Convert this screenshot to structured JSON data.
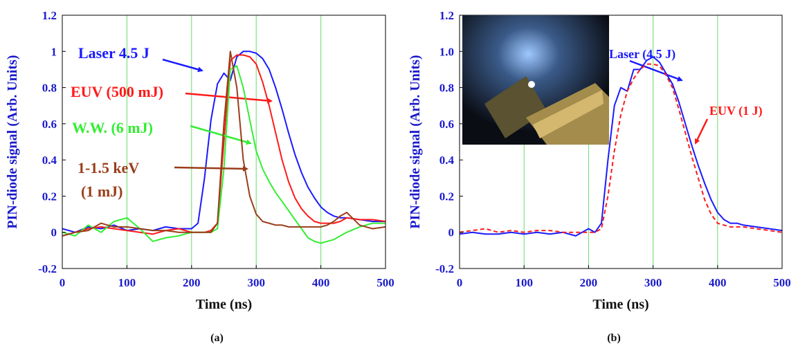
{
  "chart_data": [
    {
      "type": "line",
      "xlabel": "Time (ns)",
      "ylabel": "PIN-diode signal (Arb. Units)",
      "caption": "(a)",
      "xlim": [
        0,
        500
      ],
      "ylim": [
        -0.2,
        1.2
      ],
      "xticks": [
        0,
        100,
        200,
        300,
        400,
        500
      ],
      "yticks": [
        -0.2,
        0,
        0.2,
        0.4,
        0.6,
        0.8,
        1,
        1.2
      ],
      "grid": "x",
      "grid_color": "#66dd66",
      "x": [
        0,
        20,
        40,
        60,
        80,
        100,
        120,
        140,
        160,
        180,
        200,
        210,
        220,
        230,
        240,
        250,
        260,
        270,
        280,
        290,
        300,
        310,
        320,
        330,
        340,
        350,
        360,
        370,
        380,
        390,
        400,
        410,
        420,
        430,
        440,
        460,
        480,
        500
      ],
      "series": [
        {
          "name": "Laser 4.5 J",
          "color": "#1a1aff",
          "values": [
            0.02,
            0.0,
            0.03,
            0.02,
            0.04,
            0.01,
            0.02,
            0.01,
            0.03,
            0.02,
            0.02,
            0.05,
            0.3,
            0.62,
            0.82,
            0.88,
            0.84,
            0.97,
            1.0,
            1.0,
            0.99,
            0.96,
            0.9,
            0.8,
            0.68,
            0.55,
            0.43,
            0.33,
            0.25,
            0.19,
            0.14,
            0.11,
            0.09,
            0.08,
            0.08,
            0.07,
            0.06,
            0.06
          ]
        },
        {
          "name": "EUV (500 mJ)",
          "color": "#ff1a1a",
          "values": [
            -0.02,
            0.0,
            0.02,
            0.03,
            0.02,
            0.01,
            0.0,
            -0.01,
            0.01,
            0.02,
            0.0,
            0.0,
            0.0,
            0.01,
            0.05,
            0.5,
            0.95,
            0.98,
            0.98,
            0.97,
            0.93,
            0.83,
            0.7,
            0.55,
            0.4,
            0.28,
            0.19,
            0.13,
            0.09,
            0.06,
            0.05,
            0.05,
            0.05,
            0.06,
            0.08,
            0.07,
            0.07,
            0.06
          ]
        },
        {
          "name": "W.W. (6 mJ)",
          "color": "#33ee33",
          "values": [
            0.0,
            -0.02,
            0.04,
            0.0,
            0.06,
            0.08,
            0.02,
            -0.05,
            -0.03,
            -0.02,
            0.0,
            0.0,
            0.0,
            0.0,
            0.02,
            0.35,
            0.9,
            0.92,
            0.8,
            0.62,
            0.45,
            0.35,
            0.28,
            0.22,
            0.17,
            0.12,
            0.07,
            0.02,
            -0.03,
            -0.05,
            -0.06,
            -0.05,
            -0.04,
            -0.02,
            0.0,
            0.03,
            0.05,
            0.05
          ]
        },
        {
          "name": [
            "1-1.5 keV",
            "(1 mJ)"
          ],
          "color": "#993d1a",
          "values": [
            -0.02,
            0.0,
            0.01,
            0.05,
            0.03,
            0.03,
            0.02,
            0.01,
            0.01,
            0.0,
            0.0,
            0.0,
            0.0,
            0.0,
            0.05,
            0.6,
            1.0,
            0.8,
            0.4,
            0.2,
            0.1,
            0.06,
            0.05,
            0.04,
            0.04,
            0.03,
            0.03,
            0.03,
            0.03,
            0.03,
            0.03,
            0.04,
            0.06,
            0.09,
            0.11,
            0.04,
            0.02,
            0.03
          ]
        }
      ]
    },
    {
      "type": "line",
      "xlabel": "Time (ns)",
      "ylabel": "PIN-diode signal (Arb. Units)",
      "caption": "(b)",
      "xlim": [
        0,
        500
      ],
      "ylim": [
        -0.2,
        1.2
      ],
      "xticks": [
        0,
        100,
        200,
        300,
        400,
        500
      ],
      "yticks": [
        -0.2,
        0,
        0.2,
        0.4,
        0.6,
        0.8,
        {
          "value": 1,
          "label": "1.0"
        },
        1.2
      ],
      "grid": "x",
      "grid_color": "#66dd66",
      "x": [
        0,
        20,
        40,
        60,
        80,
        100,
        120,
        140,
        160,
        180,
        200,
        210,
        220,
        230,
        240,
        250,
        260,
        270,
        280,
        290,
        300,
        310,
        320,
        330,
        340,
        350,
        360,
        370,
        380,
        390,
        400,
        410,
        420,
        430,
        440,
        460,
        480,
        500
      ],
      "series": [
        {
          "name": "Laser (4.5 J)",
          "color": "#1a1aff",
          "values": [
            -0.01,
            0.0,
            -0.01,
            -0.01,
            0.0,
            -0.01,
            0.0,
            -0.01,
            0.0,
            -0.02,
            0.02,
            0.0,
            0.05,
            0.4,
            0.7,
            0.8,
            0.78,
            0.9,
            0.9,
            0.95,
            0.97,
            0.94,
            0.88,
            0.82,
            0.72,
            0.6,
            0.48,
            0.37,
            0.27,
            0.18,
            0.11,
            0.07,
            0.05,
            0.05,
            0.04,
            0.03,
            0.02,
            0.01
          ]
        },
        {
          "name": "EUV (1 J)",
          "color": "#ff1a1a",
          "linestyle": "dashed",
          "values": [
            0.0,
            0.01,
            0.02,
            0.0,
            0.01,
            0.0,
            0.01,
            0.01,
            0.0,
            0.0,
            0.0,
            0.0,
            0.02,
            0.2,
            0.45,
            0.65,
            0.78,
            0.85,
            0.9,
            0.93,
            0.93,
            0.92,
            0.87,
            0.8,
            0.68,
            0.55,
            0.42,
            0.3,
            0.18,
            0.1,
            0.05,
            0.04,
            0.03,
            0.03,
            0.03,
            0.02,
            0.01,
            0.0
          ]
        }
      ]
    }
  ]
}
